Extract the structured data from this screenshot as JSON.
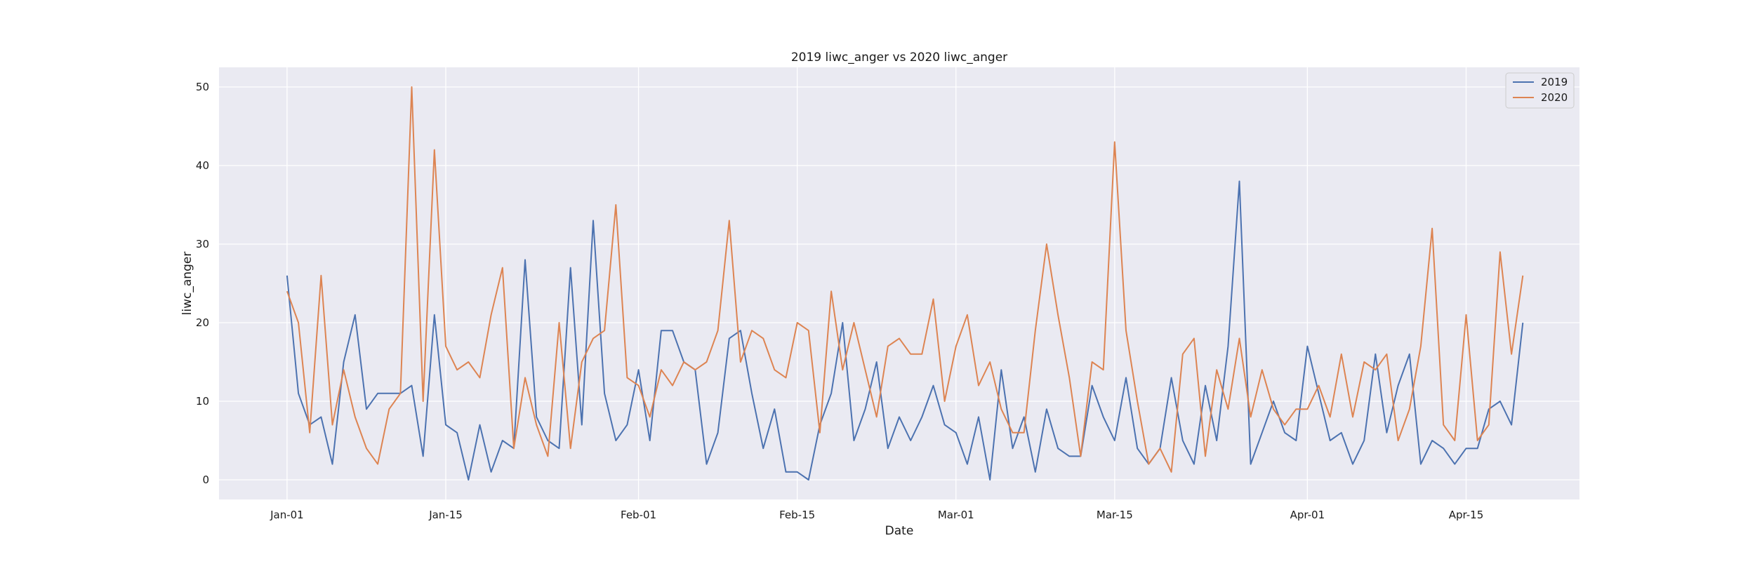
{
  "chart_data": {
    "type": "line",
    "title": "2019 liwc_anger vs 2020 liwc_anger",
    "xlabel": "Date",
    "ylabel": "liwc_anger",
    "x_start": "2019-01-01",
    "xlim": [
      "2018-12-26",
      "2019-04-25"
    ],
    "ylim": [
      -2.5,
      52.5
    ],
    "xticks": [
      {
        "date": "2019-01-01",
        "label": "Jan-01"
      },
      {
        "date": "2019-01-15",
        "label": "Jan-15"
      },
      {
        "date": "2019-02-01",
        "label": "Feb-01"
      },
      {
        "date": "2019-02-15",
        "label": "Feb-15"
      },
      {
        "date": "2019-03-01",
        "label": "Mar-01"
      },
      {
        "date": "2019-03-15",
        "label": "Mar-15"
      },
      {
        "date": "2019-04-01",
        "label": "Apr-01"
      },
      {
        "date": "2019-04-15",
        "label": "Apr-15"
      }
    ],
    "yticks": [
      0,
      10,
      20,
      30,
      40,
      50
    ],
    "grid": true,
    "legend_position": "upper right",
    "series": [
      {
        "name": "2019",
        "color": "#4c72b0",
        "values": [
          26,
          11,
          7,
          8,
          2,
          15,
          21,
          9,
          11,
          11,
          11,
          12,
          3,
          21,
          7,
          6,
          0,
          7,
          1,
          5,
          4,
          28,
          8,
          5,
          4,
          27,
          7,
          33,
          11,
          5,
          7,
          14,
          5,
          19,
          19,
          15,
          14,
          2,
          6,
          18,
          19,
          11,
          4,
          9,
          1,
          1,
          0,
          7,
          11,
          20,
          5,
          9,
          15,
          4,
          8,
          5,
          8,
          12,
          7,
          6,
          2,
          8,
          0,
          14,
          4,
          8,
          1,
          9,
          4,
          3,
          3,
          12,
          8,
          5,
          13,
          4,
          2,
          4,
          13,
          5,
          2,
          12,
          5,
          17,
          38,
          2,
          6,
          10,
          6,
          5,
          17,
          11,
          5,
          6,
          2,
          5,
          16,
          6,
          12,
          16,
          2,
          5,
          4,
          2,
          4,
          4,
          9,
          10,
          7,
          20
        ]
      },
      {
        "name": "2020",
        "color": "#dd8452",
        "values": [
          24,
          20,
          6,
          26,
          7,
          14,
          8,
          4,
          2,
          9,
          11,
          50,
          10,
          42,
          17,
          14,
          15,
          13,
          21,
          27,
          4,
          13,
          7,
          3,
          20,
          4,
          15,
          18,
          19,
          35,
          13,
          12,
          8,
          14,
          12,
          15,
          14,
          15,
          19,
          33,
          15,
          19,
          18,
          14,
          13,
          20,
          19,
          6,
          24,
          14,
          20,
          14,
          8,
          17,
          18,
          16,
          16,
          23,
          10,
          17,
          21,
          12,
          15,
          9,
          6,
          6,
          19,
          30,
          21,
          13,
          3,
          15,
          14,
          43,
          19,
          10,
          2,
          4,
          1,
          16,
          18,
          3,
          14,
          9,
          18,
          8,
          14,
          9,
          7,
          9,
          9,
          12,
          8,
          16,
          8,
          15,
          14,
          16,
          5,
          9,
          17,
          32,
          7,
          5,
          21,
          5,
          7,
          29,
          16,
          26
        ]
      }
    ]
  }
}
